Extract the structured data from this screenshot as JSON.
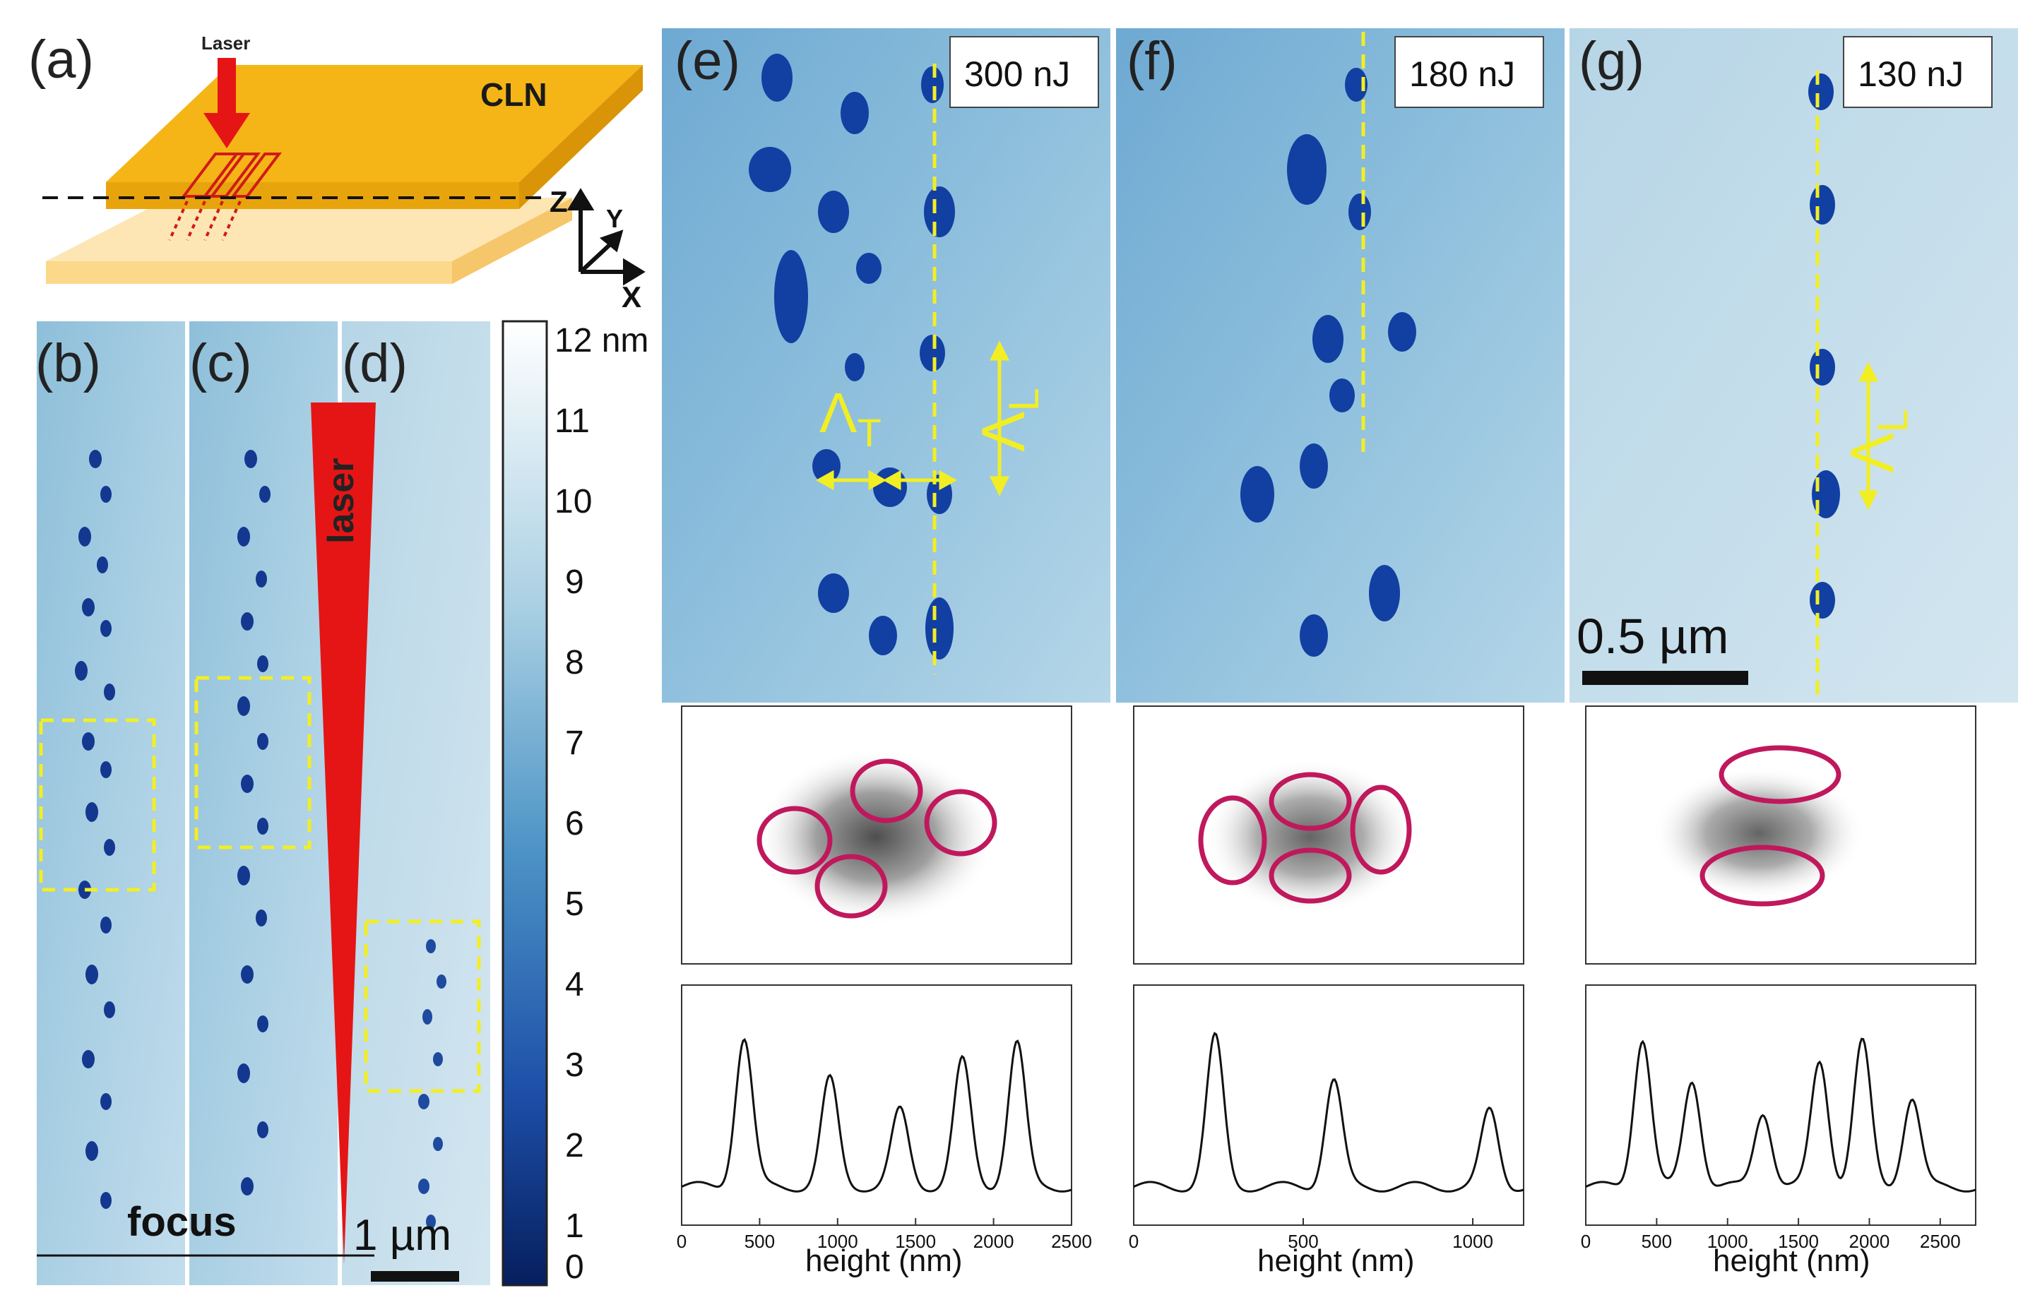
{
  "panels": {
    "a": {
      "label": "(a)",
      "laser": "Laser",
      "crystal": "CLN",
      "axis_z": "Z",
      "axis_y": "Y",
      "axis_x": "X"
    },
    "b": {
      "label": "(b)"
    },
    "c": {
      "label": "(c)"
    },
    "d": {
      "label": "(d)"
    },
    "e": {
      "label": "(e)",
      "energy": "300 nJ"
    },
    "f": {
      "label": "(f)",
      "energy": "180 nJ"
    },
    "g": {
      "label": "(g)",
      "energy": "130 nJ"
    }
  },
  "bcd": {
    "laser_text": "laser",
    "focus_text": "focus",
    "scalebar": "1 µm"
  },
  "colorbar": {
    "ticks": [
      "12 nm",
      "11",
      "10",
      "9",
      "8",
      "7",
      "6",
      "5",
      "4",
      "3",
      "2",
      "1",
      "0"
    ]
  },
  "annotations": {
    "lambda_T": "Λ",
    "lambda_T_sub": "T",
    "lambda_L": "Λ",
    "lambda_L_sub": "L",
    "scale_g": "0.5 µm"
  },
  "colors": {
    "afm_light": "#b9d7e6",
    "afm_dark": "#0b2f8c",
    "accent_yellow": "#f2ee24",
    "laser_red": "#e51515",
    "ellipse": "#c0185c",
    "crystal": "#f5b516"
  },
  "chart_data": [
    {
      "type": "line",
      "title": "",
      "xlabel": "height (nm)",
      "ylabel": "",
      "xlim": [
        0,
        2500
      ],
      "xticks": [
        "0",
        "500",
        "1000",
        "1500",
        "2000",
        "2500"
      ],
      "series": [
        {
          "name": "e",
          "peaks_x": [
            400,
            950,
            1400,
            1800,
            2150
          ]
        }
      ]
    },
    {
      "type": "line",
      "title": "",
      "xlabel": "height (nm)",
      "ylabel": "",
      "xlim": [
        0,
        1150
      ],
      "xticks": [
        "0",
        "500",
        "1000"
      ],
      "series": [
        {
          "name": "f",
          "peaks_x": [
            240,
            590,
            1050
          ]
        }
      ]
    },
    {
      "type": "line",
      "title": "",
      "xlabel": "height (nm)",
      "ylabel": "",
      "xlim": [
        0,
        2750
      ],
      "xticks": [
        "0",
        "500",
        "1000",
        "1500",
        "2000",
        "2500"
      ],
      "series": [
        {
          "name": "g",
          "peaks_x": [
            400,
            750,
            1250,
            1650,
            1950,
            2300
          ]
        }
      ]
    }
  ]
}
